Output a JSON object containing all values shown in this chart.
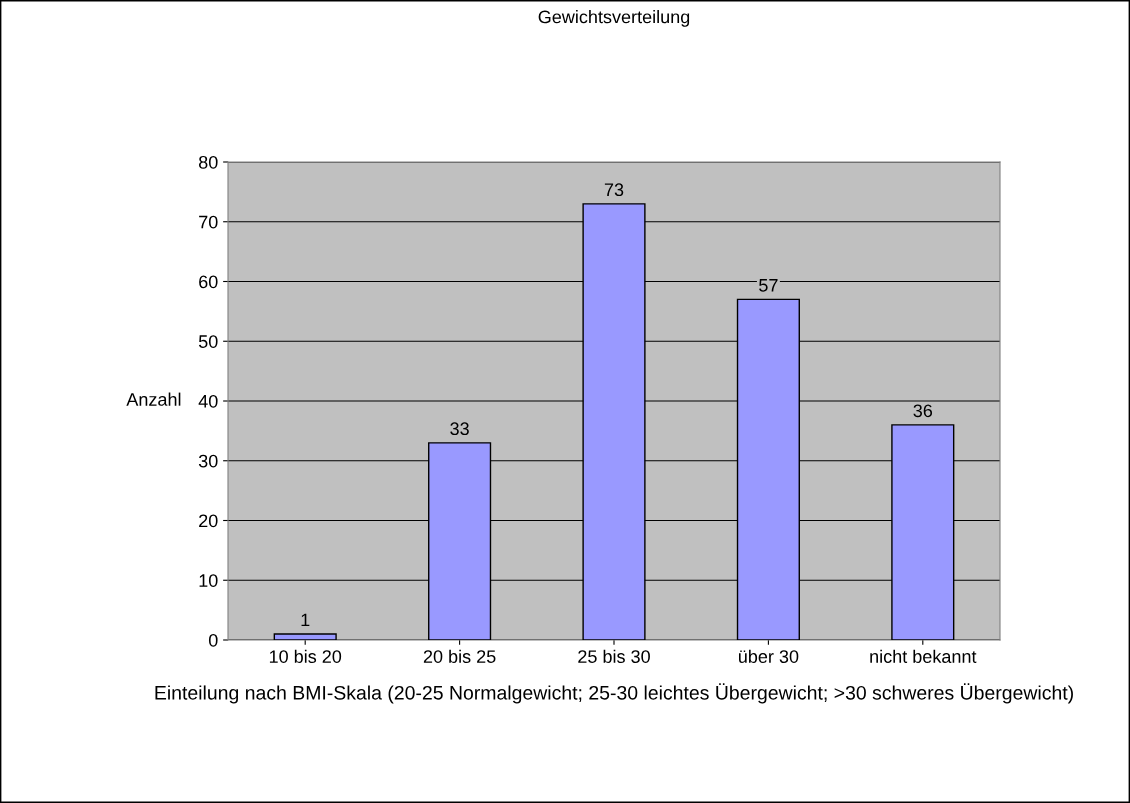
{
  "chart_data": {
    "type": "bar",
    "title": "Gewichtsverteilung",
    "xlabel": "Einteilung nach BMI-Skala (20-25 Normalgewicht; 25-30 leichtes Übergewicht; >30 schweres Übergewicht)",
    "ylabel": "Anzahl",
    "categories": [
      "10 bis 20",
      "20 bis 25",
      "25 bis 30",
      "über 30",
      "nicht bekannt"
    ],
    "values": [
      1,
      33,
      73,
      57,
      36
    ],
    "color": "#9999ff",
    "ylim": [
      0,
      80
    ],
    "yticks": [
      0,
      10,
      20,
      30,
      40,
      50,
      60,
      70,
      80
    ],
    "grid": "y",
    "data_labels": true
  }
}
